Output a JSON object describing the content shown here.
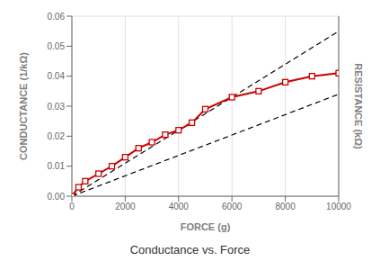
{
  "chart_data": {
    "type": "line",
    "title": "Conductance vs. Force",
    "x_label": "FORCE (g)",
    "y_label": "CONDUCTANCE (1/kΩ)",
    "y2_label": "RESISTANCE (kΩ)",
    "xlim": [
      0,
      10000
    ],
    "xticks": [
      0,
      2000,
      4000,
      6000,
      8000,
      10000
    ],
    "ylim": [
      0,
      0.06
    ],
    "yticks": [
      {
        "value": 0,
        "label": "0.00"
      },
      0.01,
      0.02,
      0.03,
      0.04,
      0.05,
      0.06
    ],
    "y2lim": [
      0,
      0.06
    ],
    "grid": true,
    "series": [
      {
        "x": [
          0,
          10000
        ],
        "values": [
          0.0,
          0.055
        ],
        "color": "#000000",
        "line_style": "dashed"
      },
      {
        "x": [
          0,
          10000
        ],
        "values": [
          0.0,
          0.034
        ],
        "color": "#000000",
        "line_style": "dashed"
      },
      {
        "x": [
          0,
          250,
          500,
          1000,
          1500,
          2000,
          2500,
          3000,
          3500,
          4000,
          4500,
          5000,
          6000,
          7000,
          8000,
          9000,
          10000
        ],
        "values": [
          0.0,
          0.003,
          0.005,
          0.0075,
          0.01,
          0.013,
          0.016,
          0.018,
          0.0205,
          0.022,
          0.0245,
          0.029,
          0.033,
          0.035,
          0.038,
          0.04,
          0.041
        ],
        "color": "#CC0000",
        "line_style": "solid",
        "marker": "square"
      }
    ]
  }
}
